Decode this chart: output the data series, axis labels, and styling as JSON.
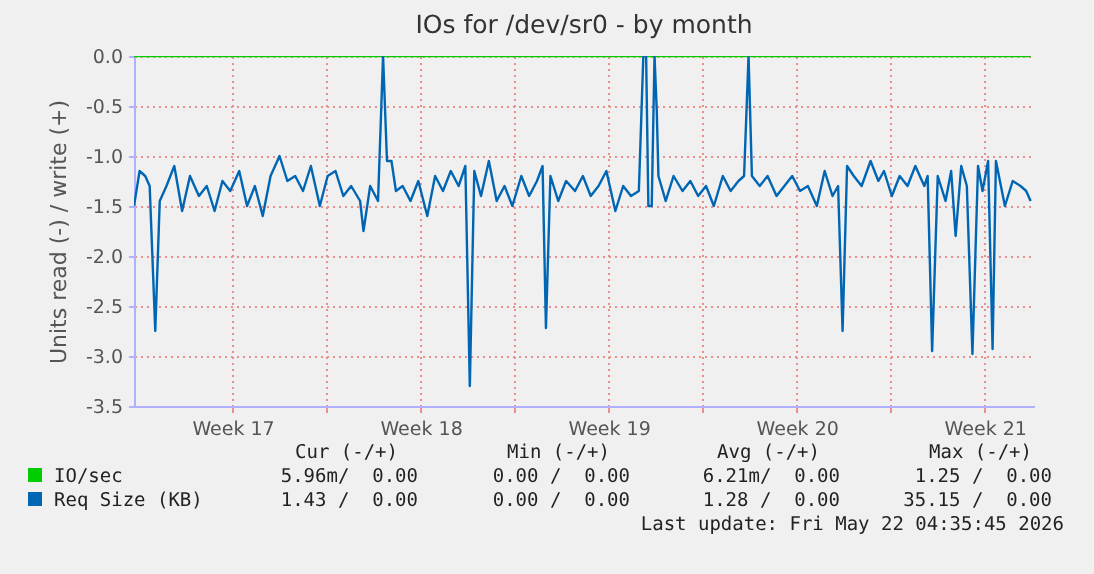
{
  "chart_data": {
    "type": "line",
    "title": "IOs for /dev/sr0 - by month",
    "ylabel": "Units read (-) / write (+)",
    "xlim": [
      "2026-04-19T20:00",
      "2026-05-23T08:00"
    ],
    "ylim": [
      -3.5,
      0
    ],
    "xticks": [
      {
        "value": "2026-04-23T12:00",
        "label": "Week 17"
      },
      {
        "value": "2026-04-27T00:00",
        "label": null
      },
      {
        "value": "2026-04-30T12:00",
        "label": "Week 18"
      },
      {
        "value": "2026-05-04T00:00",
        "label": null
      },
      {
        "value": "2026-05-07T12:00",
        "label": "Week 19"
      },
      {
        "value": "2026-05-11T00:00",
        "label": null
      },
      {
        "value": "2026-05-14T12:00",
        "label": "Week 20"
      },
      {
        "value": "2026-05-18T00:00",
        "label": null
      },
      {
        "value": "2026-05-21T12:00",
        "label": "Week 21"
      }
    ],
    "yticks": [
      {
        "value": -3.5,
        "label": "-3.5"
      },
      {
        "value": -3,
        "label": "-3.0"
      },
      {
        "value": -2.5,
        "label": "-2.5"
      },
      {
        "value": -2,
        "label": "-2.0"
      },
      {
        "value": -1.5,
        "label": "-1.5"
      },
      {
        "value": -1,
        "label": "-1.0"
      },
      {
        "value": -0.5,
        "label": "-0.5"
      },
      {
        "value": 0,
        "label": "0.0"
      }
    ],
    "grid": true,
    "legend": "bottom",
    "series": [
      {
        "name": "IO/sec",
        "color": "#00cc00",
        "x": [
          "2026-04-19T20:00",
          "2026-05-23T05:00"
        ],
        "values": [
          0,
          0
        ]
      },
      {
        "name": "Req Size (KB)",
        "color": "#0066b3",
        "x": [
          "2026-04-19T20:00",
          "2026-04-20T01:00",
          "2026-04-20T06:00",
          "2026-04-20T10:00",
          "2026-04-20T15:00",
          "2026-04-20T19:00",
          "2026-04-21T01:00",
          "2026-04-21T08:00",
          "2026-04-21T15:00",
          "2026-04-21T22:00",
          "2026-04-22T06:00",
          "2026-04-22T13:00",
          "2026-04-22T20:00",
          "2026-04-23T03:00",
          "2026-04-23T10:00",
          "2026-04-23T18:00",
          "2026-04-24T01:00",
          "2026-04-24T08:00",
          "2026-04-24T15:00",
          "2026-04-24T22:00",
          "2026-04-25T06:00",
          "2026-04-25T13:00",
          "2026-04-25T20:00",
          "2026-04-26T03:00",
          "2026-04-26T10:00",
          "2026-04-26T18:00",
          "2026-04-27T01:00",
          "2026-04-27T08:00",
          "2026-04-27T15:00",
          "2026-04-27T22:00",
          "2026-04-28T06:00",
          "2026-04-28T09:00",
          "2026-04-28T15:00",
          "2026-04-28T22:00",
          "2026-04-29T02:30",
          "2026-04-29T06:00",
          "2026-04-29T10:00",
          "2026-04-29T14:00",
          "2026-04-29T20:00",
          "2026-04-30T03:00",
          "2026-04-30T10:00",
          "2026-04-30T18:00",
          "2026-05-01T01:00",
          "2026-05-01T08:00",
          "2026-05-01T15:00",
          "2026-05-01T22:00",
          "2026-05-02T04:00",
          "2026-05-02T08:00",
          "2026-05-02T12:00",
          "2026-05-02T18:00",
          "2026-05-03T01:00",
          "2026-05-03T08:00",
          "2026-05-03T15:00",
          "2026-05-03T22:00",
          "2026-05-04T06:00",
          "2026-05-04T13:00",
          "2026-05-04T20:00",
          "2026-05-05T01:00",
          "2026-05-05T04:00",
          "2026-05-05T08:00",
          "2026-05-05T15:00",
          "2026-05-05T22:00",
          "2026-05-06T06:00",
          "2026-05-06T13:00",
          "2026-05-06T20:00",
          "2026-05-07T03:00",
          "2026-05-07T10:00",
          "2026-05-07T18:00",
          "2026-05-08T01:00",
          "2026-05-08T08:00",
          "2026-05-08T15:00",
          "2026-05-08T19:00",
          "2026-05-08T21:30",
          "2026-05-08T23:30",
          "2026-05-09T02:30",
          "2026-05-09T05:00",
          "2026-05-09T07:00",
          "2026-05-09T08:30",
          "2026-05-09T15:00",
          "2026-05-09T22:00",
          "2026-05-10T06:00",
          "2026-05-10T13:00",
          "2026-05-10T20:00",
          "2026-05-11T03:00",
          "2026-05-11T10:00",
          "2026-05-11T18:00",
          "2026-05-12T01:00",
          "2026-05-12T08:00",
          "2026-05-12T13:00",
          "2026-05-12T17:00",
          "2026-05-12T20:00",
          "2026-05-13T03:00",
          "2026-05-13T10:00",
          "2026-05-13T18:00",
          "2026-05-14T01:00",
          "2026-05-14T08:00",
          "2026-05-14T15:00",
          "2026-05-14T22:00",
          "2026-05-15T06:00",
          "2026-05-15T13:00",
          "2026-05-15T20:00",
          "2026-05-16T01:00",
          "2026-05-16T05:00",
          "2026-05-16T09:00",
          "2026-05-16T15:00",
          "2026-05-16T22:00",
          "2026-05-17T06:00",
          "2026-05-17T13:00",
          "2026-05-17T18:00",
          "2026-05-18T01:00",
          "2026-05-18T08:00",
          "2026-05-18T15:00",
          "2026-05-18T22:00",
          "2026-05-19T06:00",
          "2026-05-19T09:00",
          "2026-05-19T13:00",
          "2026-05-19T18:00",
          "2026-05-20T01:00",
          "2026-05-20T06:00",
          "2026-05-20T10:00",
          "2026-05-20T15:00",
          "2026-05-20T20:00",
          "2026-05-21T01:00",
          "2026-05-21T06:00",
          "2026-05-21T10:00",
          "2026-05-21T15:00",
          "2026-05-21T19:00",
          "2026-05-21T22:00",
          "2026-05-22T06:00",
          "2026-05-22T13:00",
          "2026-05-22T20:00",
          "2026-05-23T01:00",
          "2026-05-23T05:00"
        ],
        "values": [
          -1.5,
          -1.15,
          -1.2,
          -1.3,
          -2.75,
          -1.45,
          -1.3,
          -1.1,
          -1.55,
          -1.2,
          -1.4,
          -1.3,
          -1.55,
          -1.25,
          -1.35,
          -1.15,
          -1.5,
          -1.3,
          -1.6,
          -1.2,
          -1.0,
          -1.25,
          -1.2,
          -1.35,
          -1.1,
          -1.5,
          -1.2,
          -1.15,
          -1.4,
          -1.3,
          -1.45,
          -1.75,
          -1.3,
          -1.45,
          0,
          -1.05,
          -1.05,
          -1.35,
          -1.3,
          -1.45,
          -1.25,
          -1.6,
          -1.2,
          -1.35,
          -1.15,
          -1.3,
          -1.1,
          -3.3,
          -1.15,
          -1.4,
          -1.05,
          -1.45,
          -1.3,
          -1.5,
          -1.2,
          -1.4,
          -1.25,
          -1.1,
          -2.72,
          -1.2,
          -1.45,
          -1.25,
          -1.35,
          -1.2,
          -1.4,
          -1.3,
          -1.15,
          -1.55,
          -1.3,
          -1.4,
          -1.35,
          0,
          0,
          -1.5,
          -1.5,
          0,
          -0.55,
          -1.2,
          -1.45,
          -1.2,
          -1.35,
          -1.25,
          -1.4,
          -1.3,
          -1.5,
          -1.2,
          -1.35,
          -1.25,
          -1.2,
          0,
          -1.2,
          -1.3,
          -1.2,
          -1.4,
          -1.3,
          -1.2,
          -1.35,
          -1.3,
          -1.5,
          -1.15,
          -1.4,
          -1.3,
          -2.75,
          -1.1,
          -1.2,
          -1.3,
          -1.05,
          -1.25,
          -1.15,
          -1.4,
          -1.2,
          -1.3,
          -1.1,
          -1.3,
          -1.2,
          -2.95,
          -1.2,
          -1.45,
          -1.15,
          -1.8,
          -1.1,
          -1.3,
          -2.98,
          -1.1,
          -1.35,
          -1.05,
          -2.93,
          -1.05,
          -1.5,
          -1.25,
          -1.3,
          -1.35,
          -1.45
        ]
      }
    ],
    "annotations": [
      "Cur (-/+)",
      "Min (-/+)",
      "Avg (-/+)",
      "Max (-/+)",
      "5.96m/  0.00",
      "0.00 /  0.00",
      "6.21m/  0.00",
      "1.25 /  0.00",
      "1.43 /  0.00",
      "0.00 /  0.00",
      "1.28 /  0.00",
      "35.15 /  0.00",
      "Last update: Fri May 22 04:35:45 2026"
    ]
  }
}
